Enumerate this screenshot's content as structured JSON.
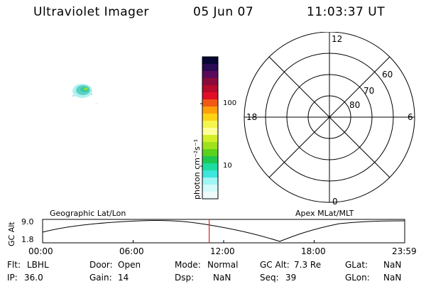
{
  "header": {
    "title": "Ultraviolet Imager",
    "date": "05 Jun 07",
    "time": "11:03:37 UT"
  },
  "colorbar": {
    "unit_label": "photon cm⁻²s⁻¹",
    "ticks": [
      "100",
      "10"
    ],
    "colors": [
      "#060633",
      "#2a0a52",
      "#5a0a5a",
      "#8a0a3a",
      "#b80a2a",
      "#e20e26",
      "#f05a12",
      "#ffa00a",
      "#ffd214",
      "#f5f550",
      "#ffff99",
      "#d2f028",
      "#a0e11e",
      "#5ad21e",
      "#1ec850",
      "#1edca0",
      "#3ce6dc",
      "#a0f5f5",
      "#d2fafa",
      "#f0fafa"
    ]
  },
  "polar": {
    "mlt_labels": {
      "top": "12",
      "left": "18",
      "right": "6",
      "bottom": "0"
    },
    "lat_labels": [
      "60",
      "70",
      "80"
    ]
  },
  "timeline": {
    "left_title": "Geographic Lat/Lon",
    "right_title": "Apex MLat/MLT",
    "axis_label": "GC Alt",
    "y_ticks": [
      "9.0",
      "1.8"
    ],
    "x_ticks": [
      "00:00",
      "06:00",
      "12:00",
      "18:00",
      "23:59"
    ],
    "current_time_fraction": 0.46,
    "marker_color": "#dd2222"
  },
  "info": {
    "flt": {
      "label": "Flt:",
      "value": "LBHL"
    },
    "ip": {
      "label": "IP:",
      "value": "36.0"
    },
    "door": {
      "label": "Door:",
      "value": "Open"
    },
    "gain": {
      "label": "Gain:",
      "value": "14"
    },
    "mode": {
      "label": "Mode:",
      "value": "Normal"
    },
    "dsp": {
      "label": "Dsp:",
      "value": "NaN"
    },
    "gcalt": {
      "label": "GC Alt:",
      "value": "7.3 Re"
    },
    "seq": {
      "label": "Seq:",
      "value": "39"
    },
    "glat": {
      "label": "GLat:",
      "value": "NaN"
    },
    "glon": {
      "label": "GLon:",
      "value": "NaN"
    }
  }
}
